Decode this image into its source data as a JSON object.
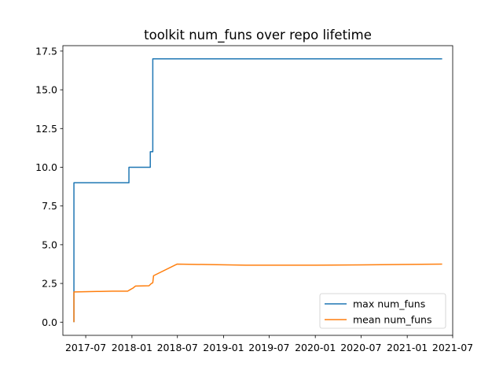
{
  "chart_data": {
    "type": "line",
    "title": "toolkit num_funs over repo lifetime",
    "xlabel": "",
    "ylabel": "",
    "x_scale": "date",
    "xlim": [
      "2017-04-01",
      "2021-07-01"
    ],
    "ylim": [
      -0.85,
      17.85
    ],
    "x_ticks": [
      "2017-07",
      "2018-01",
      "2018-07",
      "2019-01",
      "2019-07",
      "2020-01",
      "2020-07",
      "2021-01",
      "2021-07"
    ],
    "y_ticks": [
      "0.0",
      "2.5",
      "5.0",
      "7.5",
      "10.0",
      "12.5",
      "15.0",
      "17.5"
    ],
    "grid": false,
    "legend_position": "lower right",
    "series": [
      {
        "name": "max num_funs",
        "color": "#1f77b4",
        "step": true,
        "points": [
          [
            "2017-05-15",
            0
          ],
          [
            "2017-05-15",
            9
          ],
          [
            "2017-12-20",
            9
          ],
          [
            "2017-12-20",
            10
          ],
          [
            "2018-03-15",
            10
          ],
          [
            "2018-03-15",
            11
          ],
          [
            "2018-03-25",
            11
          ],
          [
            "2018-03-25",
            17
          ],
          [
            "2021-05-20",
            17
          ]
        ]
      },
      {
        "name": "mean num_funs",
        "color": "#ff7f0e",
        "step": false,
        "points": [
          [
            "2017-05-15",
            0
          ],
          [
            "2017-05-15",
            1.95
          ],
          [
            "2017-08-15",
            1.98
          ],
          [
            "2017-10-15",
            2.0
          ],
          [
            "2017-12-15",
            2.0
          ],
          [
            "2017-12-25",
            2.1
          ],
          [
            "2018-01-05",
            2.2
          ],
          [
            "2018-01-15",
            2.33
          ],
          [
            "2018-03-10",
            2.35
          ],
          [
            "2018-03-18",
            2.48
          ],
          [
            "2018-03-25",
            2.55
          ],
          [
            "2018-03-28",
            3.0
          ],
          [
            "2018-06-30",
            3.75
          ],
          [
            "2019-04-01",
            3.68
          ],
          [
            "2020-01-01",
            3.68
          ],
          [
            "2020-07-01",
            3.7
          ],
          [
            "2021-05-20",
            3.75
          ]
        ]
      }
    ]
  }
}
